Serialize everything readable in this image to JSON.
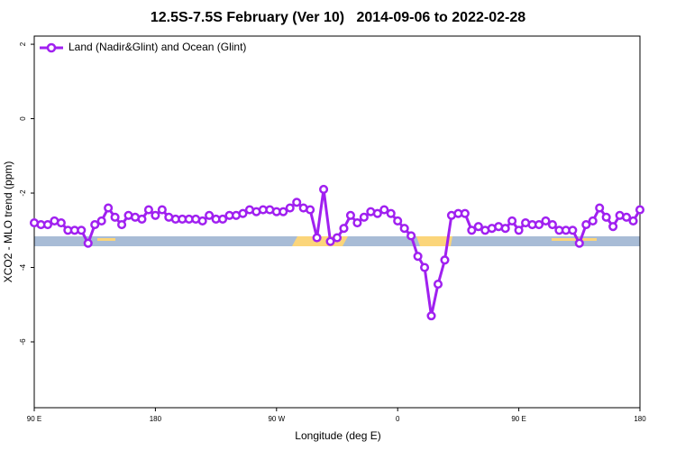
{
  "chart_data": {
    "type": "line",
    "title": "12.5S-7.5S February (Ver 10)   2014-09-06 to 2022-02-28",
    "xlabel": "Longitude (deg E)",
    "ylabel": "XCO2 - MLO trend (ppm)",
    "xlim": [
      90,
      540
    ],
    "ylim": [
      -7.77,
      2.22
    ],
    "xticks": [
      {
        "value": 90,
        "label": "90 E"
      },
      180,
      {
        "value": 270,
        "label": "90 W"
      },
      {
        "value": 360,
        "label": "0"
      },
      {
        "value": 450,
        "label": "90 E"
      },
      {
        "value": 540,
        "label": "180"
      }
    ],
    "yticks": [
      2,
      0,
      -2,
      -4,
      -6
    ],
    "legend": "top-left",
    "x": [
      90,
      95,
      100,
      105,
      110,
      115,
      120,
      125,
      130,
      135,
      140,
      145,
      150,
      155,
      160,
      165,
      170,
      175,
      180,
      185,
      190,
      195,
      200,
      205,
      210,
      215,
      220,
      225,
      230,
      235,
      240,
      245,
      250,
      255,
      260,
      265,
      270,
      275,
      280,
      285,
      290,
      295,
      300,
      305,
      310,
      315,
      320,
      325,
      330,
      335,
      340,
      345,
      350,
      355,
      360,
      365,
      370,
      375,
      380,
      385,
      390,
      395,
      400,
      405,
      410,
      415,
      420,
      425,
      430,
      435,
      440,
      445,
      450,
      455,
      460,
      465,
      470,
      475,
      480,
      485,
      490,
      495,
      500,
      505,
      510,
      515,
      520,
      525,
      530,
      535,
      540
    ],
    "series": [
      {
        "name": "Land (Nadir&Glint) and Ocean (Glint)",
        "color": "#a020f0",
        "values": [
          -2.8,
          -2.85,
          -2.85,
          -2.75,
          -2.8,
          -3.0,
          -3.0,
          -3.0,
          -3.35,
          -2.85,
          -2.75,
          -2.4,
          -2.65,
          -2.85,
          -2.6,
          -2.65,
          -2.7,
          -2.45,
          -2.6,
          -2.45,
          -2.65,
          -2.7,
          -2.7,
          -2.7,
          -2.7,
          -2.75,
          -2.6,
          -2.7,
          -2.7,
          -2.6,
          -2.6,
          -2.55,
          -2.45,
          -2.5,
          -2.45,
          -2.45,
          -2.5,
          -2.5,
          -2.4,
          -2.25,
          -2.4,
          -2.45,
          -3.2,
          -1.9,
          -3.3,
          -3.2,
          -2.95,
          -2.6,
          -2.8,
          -2.65,
          -2.5,
          -2.55,
          -2.45,
          -2.55,
          -2.75,
          -2.95,
          -3.15,
          -3.7,
          -4.0,
          -5.3,
          -4.45,
          -3.8,
          -2.6,
          -2.55,
          -2.55,
          -3.0,
          -2.9,
          -3.0,
          -2.95,
          -2.9,
          -2.95,
          -2.75,
          -3.0,
          -2.8,
          -2.85,
          -2.85,
          -2.75,
          -2.85,
          -3.0,
          -3.0,
          -3.0,
          -3.35,
          -2.85,
          -2.75,
          -2.4,
          -2.65,
          -2.9,
          -2.6,
          -2.65,
          -2.75,
          -2.45
        ]
      }
    ]
  }
}
